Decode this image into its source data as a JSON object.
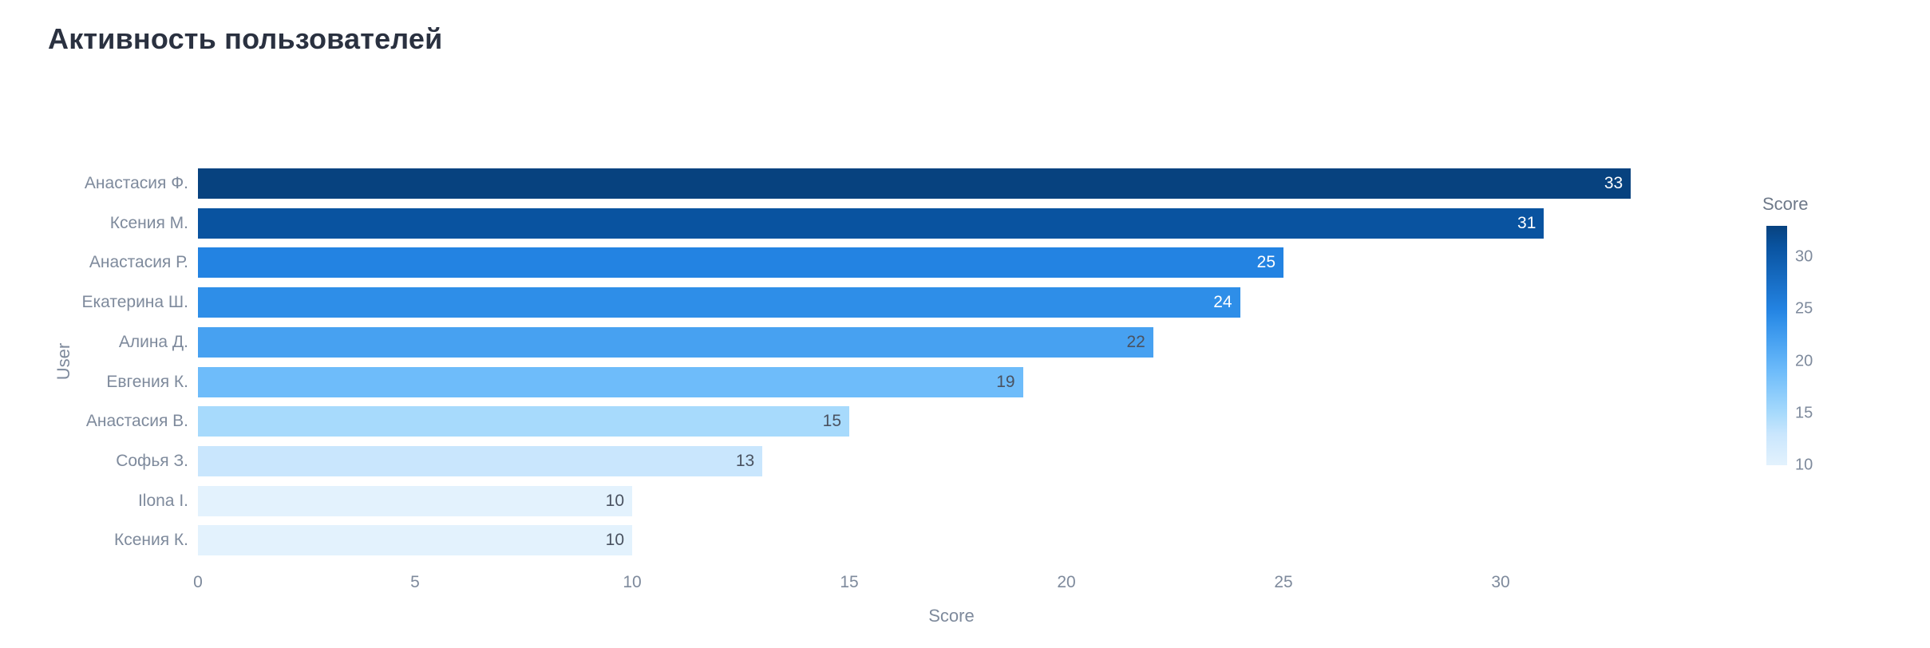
{
  "title": "Активность пользователей",
  "chart_data": {
    "type": "bar",
    "orientation": "horizontal",
    "title": "Активность пользователей",
    "xlabel": "Score",
    "ylabel": "User",
    "xlim": [
      0,
      34.7
    ],
    "x_ticks": [
      0,
      5,
      10,
      15,
      20,
      25,
      30
    ],
    "grid": false,
    "legend_position": "right-colorbar",
    "categories": [
      "Анастасия Ф.",
      "Ксения М.",
      "Анастасия Р.",
      "Екатерина Ш.",
      "Алина Д.",
      "Евгения К.",
      "Анастасия В.",
      "Софья З.",
      "Ilona I.",
      "Ксения К."
    ],
    "values": [
      33,
      31,
      25,
      24,
      22,
      19,
      15,
      13,
      10,
      10
    ],
    "bar_colors": [
      "#07427f",
      "#0953a0",
      "#2383e2",
      "#2e8ee8",
      "#47a1f1",
      "#6ebcfa",
      "#a7dafc",
      "#c9e6fd",
      "#e3f2fd",
      "#e3f2fd"
    ],
    "value_label_colors": [
      "#ffffff",
      "#ffffff",
      "#ffffff",
      "#ffffff",
      "#4a5260",
      "#4a5260",
      "#4a5260",
      "#4a5260",
      "#4a5260",
      "#4a5260"
    ],
    "colorbar": {
      "title": "Score",
      "min": 10,
      "max": 33,
      "ticks": [
        30,
        25,
        20,
        15,
        10
      ],
      "stops": [
        {
          "value": 33,
          "color": "#07427f"
        },
        {
          "value": 31,
          "color": "#0953a0"
        },
        {
          "value": 25,
          "color": "#2383e2"
        },
        {
          "value": 24,
          "color": "#2e8ee8"
        },
        {
          "value": 22,
          "color": "#47a1f1"
        },
        {
          "value": 19,
          "color": "#6ebcfa"
        },
        {
          "value": 15,
          "color": "#a7dafc"
        },
        {
          "value": 13,
          "color": "#c9e6fd"
        },
        {
          "value": 10,
          "color": "#e3f2fd"
        }
      ]
    }
  }
}
